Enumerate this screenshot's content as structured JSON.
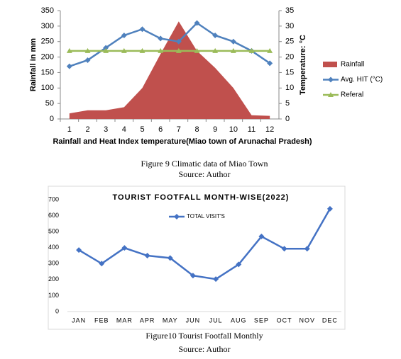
{
  "chart_data": [
    {
      "type": "area-line",
      "x_label": "Rainfall and Heat Index temperature(Miao town of Arunachal Pradesh)",
      "y_label": "Rainfall in mm",
      "y2_label": "Temperature: °C",
      "categories": [
        "1",
        "2",
        "3",
        "4",
        "5",
        "6",
        "7",
        "8",
        "9",
        "10",
        "11",
        "12"
      ],
      "series": [
        {
          "name": "Rainfall",
          "kind": "area",
          "color": "#c0504d",
          "values": [
            18,
            28,
            28,
            38,
            100,
            210,
            315,
            220,
            165,
            100,
            12,
            10
          ]
        },
        {
          "name": "Avg. HIT (°C)",
          "kind": "line",
          "axis": "y2",
          "color": "#4f81bd",
          "marker": "diamond",
          "values": [
            17,
            19,
            23,
            27,
            29,
            26,
            25,
            31,
            27,
            25,
            22,
            18
          ]
        },
        {
          "name": "Referal",
          "kind": "line",
          "axis": "y2",
          "color": "#9bbb59",
          "marker": "triangle",
          "values": [
            22,
            22,
            22,
            22,
            22,
            22,
            22,
            22,
            22,
            22,
            22,
            22
          ]
        }
      ],
      "ylim": [
        0,
        350
      ],
      "yticks": [
        0,
        50,
        100,
        150,
        200,
        250,
        300,
        350
      ],
      "y2lim": [
        0,
        35
      ],
      "y2ticks": [
        0,
        5,
        10,
        15,
        20,
        25,
        30,
        35
      ],
      "legend": "right",
      "caption": "Figure 9 Climatic data of Miao Town",
      "source": "Source: Author"
    },
    {
      "type": "line",
      "title": "TOURIST FOOTFALL MONTH-WISE(2022)",
      "categories": [
        "JAN",
        "FEB",
        "MAR",
        "APR",
        "MAY",
        "JUN",
        "JUL",
        "AUG",
        "SEP",
        "OCT",
        "NOV",
        "DEC"
      ],
      "series": [
        {
          "name": "TOTAL VISIT'S",
          "kind": "line",
          "color": "#4472c4",
          "marker": "diamond",
          "values": [
            385,
            300,
            398,
            350,
            335,
            225,
            203,
            295,
            470,
            393,
            393,
            643
          ]
        }
      ],
      "ylim": [
        0,
        700
      ],
      "yticks": [
        0,
        100,
        200,
        300,
        400,
        500,
        600,
        700
      ],
      "legend": "top",
      "caption": "Figure10 Tourist Footfall Monthly",
      "source": "Source: Author"
    }
  ]
}
